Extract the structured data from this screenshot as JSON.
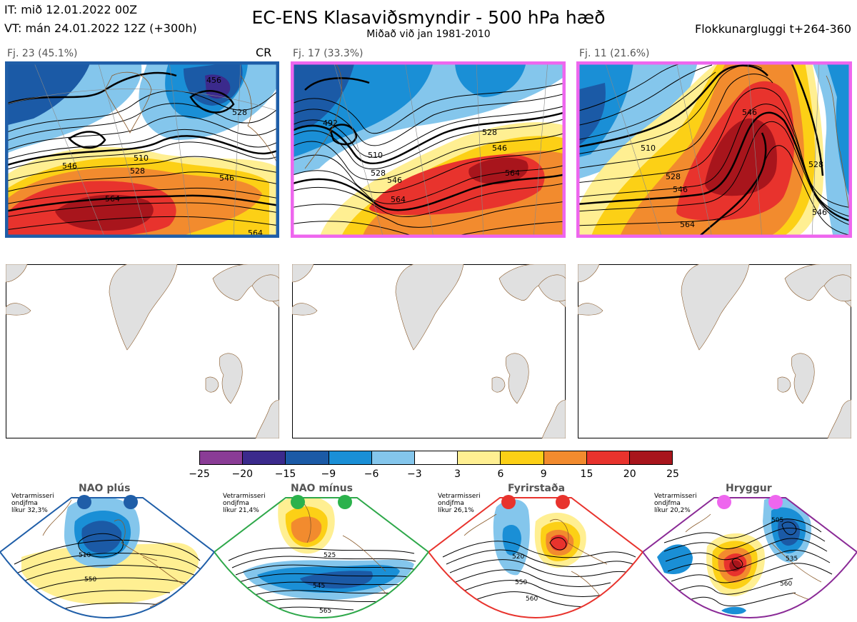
{
  "header": {
    "it_line": "IT: mið 12.01.2022 00Z",
    "vt_line": "VT: mán 24.01.2022 12Z  (+300h)",
    "title": "EC-ENS Klasaviðsmyndir - 500 hPa hæð",
    "subtitle": "Miðað við jan 1981-2010",
    "window": "Flokkunargluggi t+264-360"
  },
  "clusters": [
    {
      "label": "Fj. 23 (45.1%)",
      "regime_tag": "CR",
      "border_color": "#1f5ea8",
      "contour_labels": [
        "510",
        "528",
        "546",
        "564",
        "456",
        "528",
        "564",
        "546"
      ]
    },
    {
      "label": "Fj. 17 (33.3%)",
      "border_color": "#ee66ee",
      "contour_labels": [
        "528",
        "546",
        "564",
        "510",
        "528",
        "546",
        "564",
        "492"
      ]
    },
    {
      "label": "Fj. 11 (21.6%)",
      "border_color": "#ee66ee",
      "contour_labels": [
        "510",
        "528",
        "546",
        "564",
        "546",
        "528",
        "546"
      ]
    }
  ],
  "colorbar": {
    "ticks": [
      "−25",
      "−20",
      "−15",
      "−9",
      "−6",
      "−3",
      "3",
      "6",
      "9",
      "15",
      "20",
      "25"
    ],
    "colors": [
      "#8a3c96",
      "#3b2a8c",
      "#1b5aa6",
      "#1a8fd6",
      "#84c6ec",
      "#ffffff",
      "#ffef92",
      "#fcd016",
      "#f28b2e",
      "#e8332d",
      "#a8151c"
    ]
  },
  "regimes": [
    {
      "name": "NAO plús",
      "info_line1": "Vetrarmisseri",
      "info_line2": "ondjfma",
      "info_line3": "líkur 32,3%",
      "border_color": "#1f5ea8",
      "dot_color": "#1f5ea8",
      "contour_labels": [
        "510",
        "550"
      ]
    },
    {
      "name": "NAO mínus",
      "info_line1": "Vetrarmisseri",
      "info_line2": "ondjfma",
      "info_line3": "líkur 21,4%",
      "border_color": "#2ea84a",
      "dot_color": "#2bb24c",
      "contour_labels": [
        "525",
        "545",
        "565"
      ]
    },
    {
      "name": "Fyrirstaða",
      "info_line1": "Vetrarmisseri",
      "info_line2": "ondjfma",
      "info_line3": "líkur 26,1%",
      "border_color": "#e8332d",
      "dot_color": "#e8332d",
      "contour_labels": [
        "520",
        "550",
        "560"
      ]
    },
    {
      "name": "Hryggur",
      "info_line1": "Vetrarmisseri",
      "info_line2": "ondjfma",
      "info_line3": "líkur 20,2%",
      "border_color": "#8a2a96",
      "dot_color": "#ee66ee",
      "contour_labels": [
        "505",
        "535",
        "560"
      ]
    }
  ]
}
